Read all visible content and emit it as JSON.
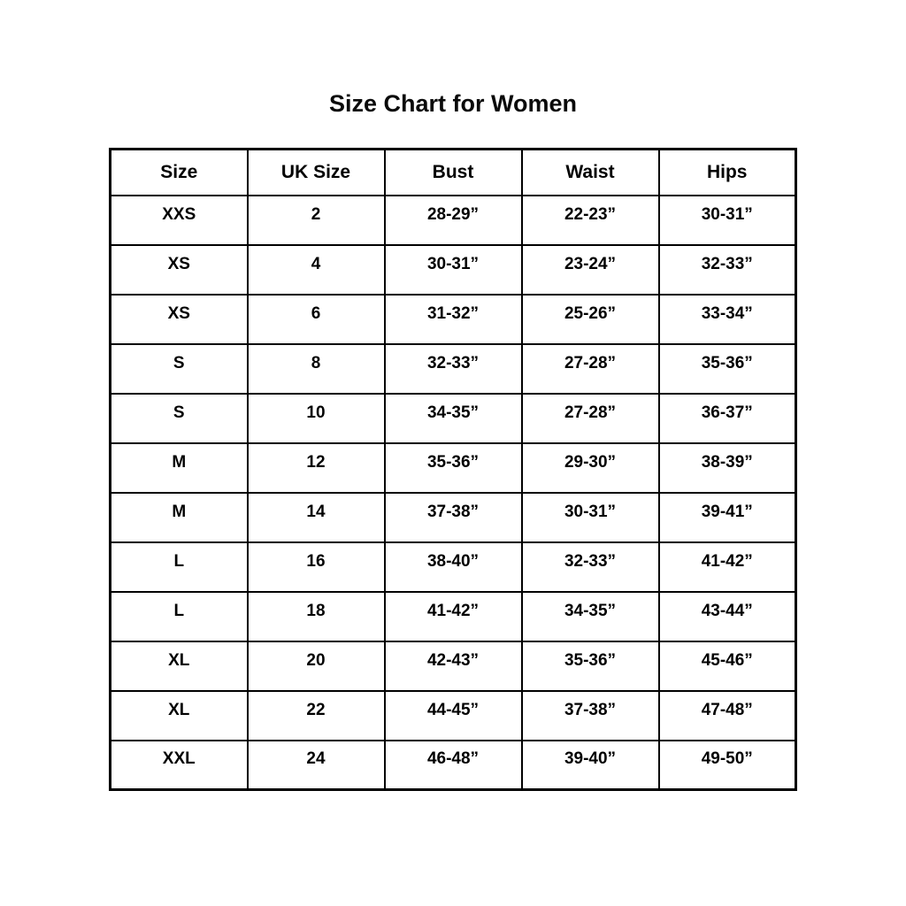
{
  "chart_data": {
    "type": "table",
    "title": "Size Chart for Women",
    "columns": [
      "Size",
      "UK Size",
      "Bust",
      "Waist",
      "Hips"
    ],
    "rows": [
      [
        "XXS",
        "2",
        "28-29”",
        "22-23”",
        "30-31”"
      ],
      [
        "XS",
        "4",
        "30-31”",
        "23-24”",
        "32-33”"
      ],
      [
        "XS",
        "6",
        "31-32”",
        "25-26”",
        "33-34”"
      ],
      [
        "S",
        "8",
        "32-33”",
        "27-28”",
        "35-36”"
      ],
      [
        "S",
        "10",
        "34-35”",
        "27-28”",
        "36-37”"
      ],
      [
        "M",
        "12",
        "35-36”",
        "29-30”",
        "38-39”"
      ],
      [
        "M",
        "14",
        "37-38”",
        "30-31”",
        "39-41”"
      ],
      [
        "L",
        "16",
        "38-40”",
        "32-33”",
        "41-42”"
      ],
      [
        "L",
        "18",
        "41-42”",
        "34-35”",
        "43-44”"
      ],
      [
        "XL",
        "20",
        "42-43”",
        "35-36”",
        "45-46”"
      ],
      [
        "XL",
        "22",
        "44-45”",
        "37-38”",
        "47-48”"
      ],
      [
        "XXL",
        "24",
        "46-48”",
        "39-40”",
        "49-50”"
      ]
    ],
    "text_color": "#000000",
    "border_color": "#000000",
    "background_color": "#ffffff",
    "legend": "none",
    "grid": "table-borders"
  }
}
